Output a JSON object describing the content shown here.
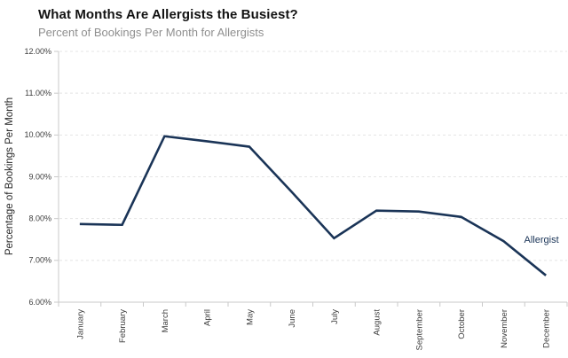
{
  "header": {
    "title": "What Months Are Allergists the Busiest?",
    "subtitle": "Percent of Bookings Per Month for Allergists"
  },
  "chart_data": {
    "type": "line",
    "title": "What Months Are Allergists the Busiest?",
    "subtitle": "Percent of Bookings Per Month for Allergists",
    "categories": [
      "January",
      "February",
      "March",
      "April",
      "May",
      "June",
      "July",
      "August",
      "September",
      "October",
      "November",
      "December"
    ],
    "series": [
      {
        "name": "Allergist",
        "values": [
          7.87,
          7.85,
          9.97,
          9.85,
          9.72,
          8.64,
          7.53,
          8.19,
          8.17,
          8.04,
          7.46,
          6.64
        ]
      }
    ],
    "values_unit": "percent",
    "xlabel": "",
    "ylabel": "Percentage of Bookings Per Month",
    "ylim": [
      6,
      12
    ],
    "yticks": [
      6,
      7,
      8,
      9,
      10,
      11,
      12
    ],
    "ytick_labels": [
      "6.00%",
      "7.00%",
      "8.00%",
      "9.00%",
      "10.00%",
      "11.00%",
      "12.00%"
    ],
    "grid": "horizontal-dashed",
    "legend_position": "line-end-label",
    "line_label": "Allergist",
    "colors": {
      "line": "#1a3457",
      "title": "#121212",
      "subtitle": "#8f8f8f",
      "axis": "#c9c9c9",
      "gridline": "#e4e4e4",
      "tick_label": "#3c3c3c"
    }
  }
}
